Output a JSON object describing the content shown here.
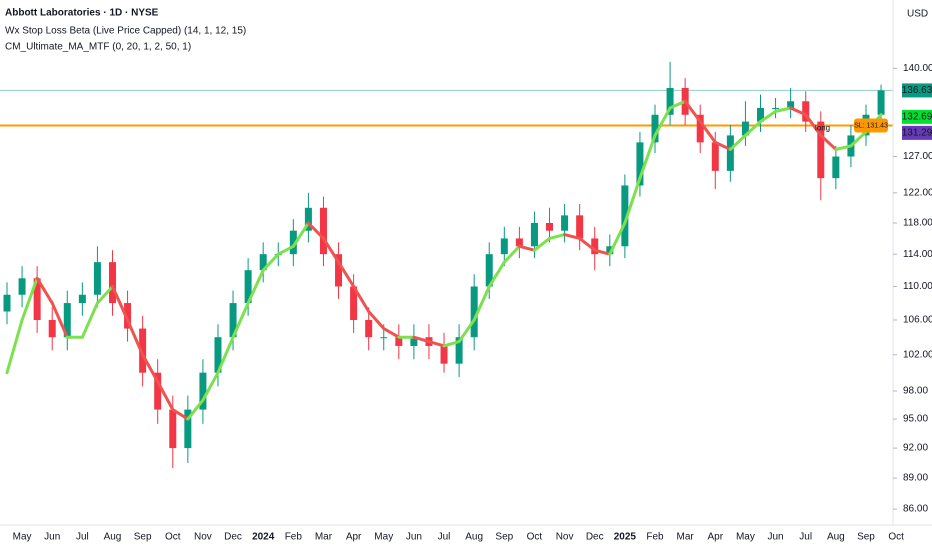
{
  "chart_data": {
    "type": "candlestick",
    "title": "Abbott Laboratories · 1D · NYSE",
    "subtitles": [
      "Wx Stop Loss Beta (Live Price Capped) (14, 1, 12, 15)",
      "CM_Ultimate_MA_MTF (0, 20, 1, 2, 50, 1)"
    ],
    "currency": "USD",
    "categories": [
      null,
      "May",
      null,
      "Jun",
      null,
      "Jul",
      null,
      "Aug",
      null,
      "Sep",
      null,
      "Oct",
      null,
      "Nov",
      null,
      "Dec",
      null,
      "2024",
      null,
      "Feb",
      null,
      "Mar",
      null,
      "Apr",
      null,
      "May",
      null,
      "Jun",
      null,
      "Jul",
      null,
      "Aug",
      null,
      "Sep",
      null,
      "Oct",
      null,
      "Nov",
      null,
      "Dec",
      null,
      "2025",
      null,
      "Feb",
      null,
      "Mar",
      null,
      "Apr",
      null,
      "May",
      null,
      "Jun",
      null,
      "Jul",
      null,
      "Aug",
      null,
      "Sep",
      null,
      "Oct"
    ],
    "open": [
      107,
      109,
      111,
      106,
      104,
      108,
      109,
      113,
      108,
      105,
      100,
      96,
      92,
      96,
      100,
      104,
      108,
      112,
      114,
      114,
      117,
      120,
      114,
      110,
      106,
      104,
      104,
      103,
      104,
      103,
      101,
      104,
      110,
      114,
      116,
      115,
      118,
      117,
      119,
      116,
      114,
      115,
      123,
      129,
      133,
      137,
      133,
      129,
      125,
      130,
      132,
      134,
      134,
      135,
      132,
      124,
      127,
      130,
      133,
      null
    ],
    "high": [
      110.5,
      112.5,
      112.5,
      107.5,
      109.5,
      110.5,
      115,
      114.5,
      109.5,
      106.5,
      101.5,
      97.5,
      97.5,
      101.5,
      105.5,
      109.5,
      113.5,
      115.5,
      115.5,
      118.5,
      122,
      121.5,
      115.5,
      111.5,
      107.5,
      105.5,
      105.5,
      105.5,
      105.5,
      104.5,
      105.5,
      111.5,
      115.5,
      117.5,
      117.5,
      119.5,
      120,
      120.5,
      120.5,
      117.5,
      116.5,
      124.5,
      130.5,
      134.5,
      141,
      138.5,
      134.5,
      130.5,
      131.5,
      135,
      136,
      135.5,
      137,
      136.5,
      133.5,
      128.5,
      131.5,
      134.5,
      137.5,
      null
    ],
    "low": [
      105.5,
      107.5,
      104.5,
      102.5,
      102.5,
      106.5,
      107.5,
      106.5,
      103.5,
      98.5,
      94.5,
      90,
      90.5,
      94.5,
      98.5,
      102.5,
      106.5,
      110.5,
      112.5,
      112.5,
      115.5,
      112.5,
      108.5,
      104.5,
      102.5,
      102.5,
      101.5,
      101.5,
      101.5,
      100,
      99.5,
      102.5,
      108.5,
      112.5,
      113.5,
      113.5,
      115.5,
      115.5,
      114.5,
      112,
      112.5,
      113.5,
      121.5,
      127.5,
      131.5,
      131.5,
      127.5,
      122.5,
      123.5,
      128.5,
      130.5,
      132.5,
      132.5,
      130.5,
      121,
      122.5,
      125.5,
      128.5,
      131.5,
      null
    ],
    "close": [
      109,
      111,
      106,
      104,
      108,
      109,
      113,
      108,
      105,
      100,
      96,
      92,
      96,
      100,
      104,
      108,
      112,
      114,
      114,
      117,
      120,
      114,
      110,
      106,
      104,
      104,
      103,
      104,
      103,
      101,
      104,
      110,
      114,
      116,
      115,
      118,
      117,
      119,
      116,
      114,
      115,
      123,
      129,
      133,
      137,
      133,
      129,
      125,
      130,
      132,
      134,
      134,
      135,
      132,
      124,
      127,
      130,
      133,
      136.63,
      null
    ],
    "up_color": "#089981",
    "down_color": "#f23645",
    "log_scale": true,
    "ylim": [
      84.5,
      149.5
    ],
    "yticks": [
      {
        "value": 86,
        "label": "86.00"
      },
      {
        "value": 89,
        "label": "89.00"
      },
      {
        "value": 92,
        "label": "92.00"
      },
      {
        "value": 95,
        "label": "95.00"
      },
      {
        "value": 98,
        "label": "98.00"
      },
      {
        "value": 102,
        "label": "102.00"
      },
      {
        "value": 106,
        "label": "106.00"
      },
      {
        "value": 110,
        "label": "110.00"
      },
      {
        "value": 114,
        "label": "114.00"
      },
      {
        "value": 118,
        "label": "118.00"
      },
      {
        "value": 122,
        "label": "122.00"
      },
      {
        "value": 127,
        "label": "127.00"
      },
      {
        "value": 140,
        "label": "140.00"
      }
    ],
    "moving_average": {
      "values": [
        100,
        106,
        111,
        108,
        104,
        104,
        108,
        110,
        106,
        102,
        99,
        96,
        95,
        97,
        100,
        104,
        108,
        112,
        114,
        115,
        118,
        116,
        113,
        110,
        107,
        105,
        104,
        104,
        103.5,
        103,
        103.5,
        106,
        110,
        113,
        115,
        114.5,
        116,
        116.5,
        116,
        114.5,
        114,
        118,
        124,
        130,
        134,
        135,
        132,
        129,
        128,
        130,
        132,
        133.5,
        134,
        133,
        130,
        128,
        128.5,
        130.5,
        133,
        null
      ],
      "up_color": "#7ce04f",
      "down_color": "#ef5350"
    },
    "stop_loss": {
      "value": 131.43,
      "label": "SL: 131.43",
      "color": "#ff9800"
    },
    "last_price": {
      "value": 136.63,
      "color": "#089981"
    },
    "price_labels": [
      {
        "value": 132.69,
        "color": "#00e031"
      },
      {
        "value": 131.29,
        "color": "#673ab7"
      }
    ],
    "annotation": "long"
  }
}
